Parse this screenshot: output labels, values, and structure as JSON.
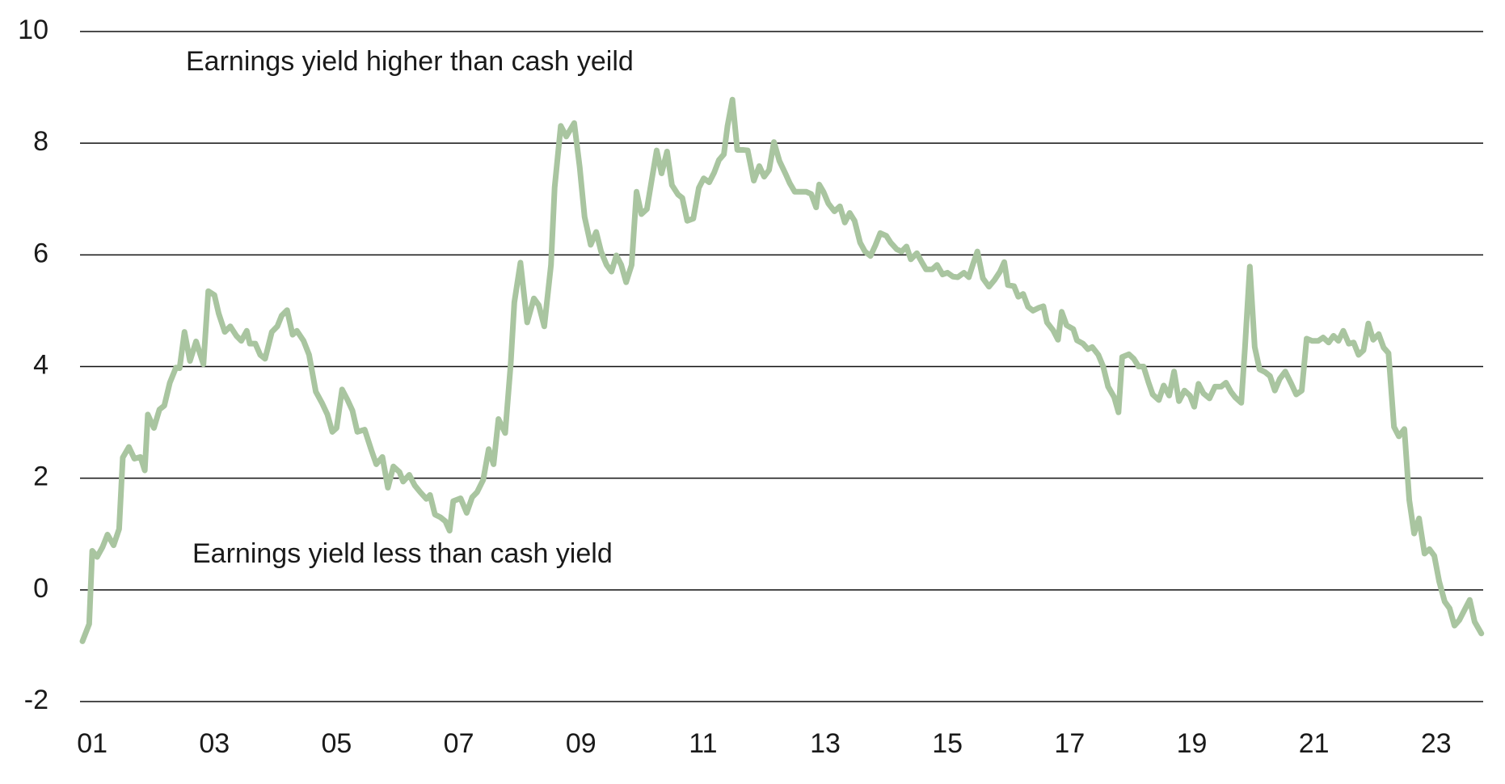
{
  "chart_data": {
    "type": "line",
    "annotations": [
      "Earnings yield higher than cash yeild",
      "Earnings yield less than cash yield"
    ],
    "color": "#a9c5a0",
    "grid": true,
    "xlim": [
      2000.8,
      2023.77
    ],
    "ylim": [
      -2,
      10
    ],
    "yticks": [
      -2,
      0,
      2,
      4,
      6,
      8,
      10
    ],
    "xticks": [
      {
        "value": 2001,
        "label": "01"
      },
      {
        "value": 2003,
        "label": "03"
      },
      {
        "value": 2005,
        "label": "05"
      },
      {
        "value": 2007,
        "label": "07"
      },
      {
        "value": 2009,
        "label": "09"
      },
      {
        "value": 2011,
        "label": "11"
      },
      {
        "value": 2013,
        "label": "13"
      },
      {
        "value": 2015,
        "label": "15"
      },
      {
        "value": 2017,
        "label": "17"
      },
      {
        "value": 2019,
        "label": "19"
      },
      {
        "value": 2021,
        "label": "21"
      },
      {
        "value": 2023,
        "label": "23"
      }
    ],
    "x": [
      2000.84,
      2000.95,
      2001.0,
      2001.08,
      2001.17,
      2001.25,
      2001.35,
      2001.44,
      2001.5,
      2001.6,
      2001.69,
      2001.79,
      2001.86,
      2001.91,
      2002.01,
      2002.1,
      2002.18,
      2002.27,
      2002.37,
      2002.43,
      2002.51,
      2002.6,
      2002.7,
      2002.82,
      2002.9,
      2003.0,
      2003.07,
      2003.17,
      2003.26,
      2003.36,
      2003.44,
      2003.53,
      2003.58,
      2003.67,
      2003.75,
      2003.83,
      2003.94,
      2004.03,
      2004.1,
      2004.19,
      2004.28,
      2004.35,
      2004.46,
      2004.55,
      2004.66,
      2004.76,
      2004.85,
      2004.93,
      2005.0,
      2005.09,
      2005.18,
      2005.26,
      2005.34,
      2005.46,
      2005.57,
      2005.65,
      2005.75,
      2005.84,
      2005.93,
      2006.03,
      2006.09,
      2006.19,
      2006.28,
      2006.37,
      2006.47,
      2006.53,
      2006.61,
      2006.7,
      2006.78,
      2006.85,
      2006.91,
      2007.03,
      2007.13,
      2007.22,
      2007.3,
      2007.4,
      2007.49,
      2007.57,
      2007.65,
      2007.76,
      2007.85,
      2007.91,
      2008.01,
      2008.12,
      2008.23,
      2008.31,
      2008.4,
      2008.51,
      2008.57,
      2008.67,
      2008.76,
      2008.89,
      2008.98,
      2009.06,
      2009.16,
      2009.25,
      2009.33,
      2009.42,
      2009.5,
      2009.58,
      2009.66,
      2009.74,
      2009.83,
      2009.91,
      2009.99,
      2010.08,
      2010.16,
      2010.24,
      2010.32,
      2010.41,
      2010.49,
      2010.59,
      2010.66,
      2010.74,
      2010.84,
      2010.93,
      2011.01,
      2011.1,
      2011.18,
      2011.26,
      2011.34,
      2011.4,
      2011.48,
      2011.56,
      2011.65,
      2011.73,
      2011.83,
      2011.92,
      2012.0,
      2012.08,
      2012.16,
      2012.25,
      2012.35,
      2012.42,
      2012.5,
      2012.6,
      2012.69,
      2012.77,
      2012.85,
      2012.9,
      2012.97,
      2013.05,
      2013.15,
      2013.24,
      2013.32,
      2013.4,
      2013.48,
      2013.57,
      2013.65,
      2013.74,
      2013.82,
      2013.9,
      2014.0,
      2014.07,
      2014.17,
      2014.25,
      2014.33,
      2014.4,
      2014.5,
      2014.58,
      2014.65,
      2014.75,
      2014.83,
      2014.92,
      2015.0,
      2015.09,
      2015.17,
      2015.27,
      2015.35,
      2015.42,
      2015.49,
      2015.58,
      2015.68,
      2015.77,
      2015.86,
      2015.93,
      2015.99,
      2016.09,
      2016.16,
      2016.24,
      2016.32,
      2016.4,
      2016.49,
      2016.57,
      2016.63,
      2016.73,
      2016.81,
      2016.87,
      2016.95,
      2017.06,
      2017.12,
      2017.22,
      2017.3,
      2017.37,
      2017.47,
      2017.55,
      2017.63,
      2017.73,
      2017.8,
      2017.86,
      2017.97,
      2018.05,
      2018.13,
      2018.21,
      2018.29,
      2018.36,
      2018.46,
      2018.54,
      2018.63,
      2018.71,
      2018.79,
      2018.88,
      2018.97,
      2019.04,
      2019.11,
      2019.19,
      2019.29,
      2019.38,
      2019.48,
      2019.56,
      2019.64,
      2019.71,
      2019.81,
      2019.87,
      2019.95,
      2020.03,
      2020.11,
      2020.2,
      2020.28,
      2020.36,
      2020.44,
      2020.53,
      2020.63,
      2020.71,
      2020.8,
      2020.88,
      2020.97,
      2021.07,
      2021.15,
      2021.24,
      2021.32,
      2021.4,
      2021.48,
      2021.57,
      2021.65,
      2021.73,
      2021.81,
      2021.89,
      2021.97,
      2022.06,
      2022.14,
      2022.22,
      2022.31,
      2022.39,
      2022.48,
      2022.56,
      2022.64,
      2022.72,
      2022.81,
      2022.89,
      2022.97,
      2023.05,
      2023.14,
      2023.22,
      2023.3,
      2023.38,
      2023.46,
      2023.55,
      2023.63,
      2023.74
    ],
    "values": [
      -0.92,
      -0.61,
      0.7,
      0.59,
      0.77,
      0.99,
      0.8,
      1.09,
      2.37,
      2.56,
      2.35,
      2.38,
      2.14,
      3.14,
      2.9,
      3.23,
      3.3,
      3.71,
      3.98,
      3.97,
      4.62,
      4.1,
      4.45,
      4.04,
      5.35,
      5.28,
      4.95,
      4.62,
      4.72,
      4.55,
      4.46,
      4.64,
      4.41,
      4.41,
      4.21,
      4.14,
      4.62,
      4.72,
      4.91,
      5.01,
      4.57,
      4.64,
      4.46,
      4.21,
      3.55,
      3.35,
      3.14,
      2.83,
      2.9,
      3.59,
      3.4,
      3.21,
      2.83,
      2.87,
      2.5,
      2.25,
      2.38,
      1.83,
      2.21,
      2.11,
      1.94,
      2.06,
      1.87,
      1.75,
      1.63,
      1.7,
      1.35,
      1.3,
      1.23,
      1.06,
      1.59,
      1.64,
      1.38,
      1.66,
      1.75,
      1.97,
      2.52,
      2.25,
      3.06,
      2.81,
      4.04,
      5.15,
      5.86,
      4.79,
      5.22,
      5.1,
      4.72,
      5.82,
      7.21,
      8.31,
      8.12,
      8.36,
      7.57,
      6.68,
      6.18,
      6.41,
      6.06,
      5.82,
      5.7,
      5.99,
      5.82,
      5.51,
      5.82,
      7.13,
      6.73,
      6.82,
      7.35,
      7.87,
      7.46,
      7.85,
      7.25,
      7.08,
      7.02,
      6.61,
      6.65,
      7.2,
      7.37,
      7.3,
      7.47,
      7.7,
      7.8,
      8.31,
      8.78,
      7.88,
      7.88,
      7.87,
      7.33,
      7.59,
      7.4,
      7.52,
      8.02,
      7.68,
      7.45,
      7.28,
      7.13,
      7.13,
      7.13,
      7.09,
      6.85,
      7.26,
      7.13,
      6.92,
      6.78,
      6.87,
      6.58,
      6.75,
      6.61,
      6.22,
      6.06,
      5.98,
      6.17,
      6.39,
      6.34,
      6.22,
      6.1,
      6.06,
      6.15,
      5.92,
      6.03,
      5.87,
      5.74,
      5.74,
      5.82,
      5.65,
      5.68,
      5.61,
      5.6,
      5.68,
      5.6,
      5.84,
      6.06,
      5.58,
      5.43,
      5.55,
      5.7,
      5.87,
      5.46,
      5.44,
      5.25,
      5.3,
      5.07,
      5.0,
      5.05,
      5.08,
      4.79,
      4.65,
      4.48,
      4.98,
      4.74,
      4.67,
      4.47,
      4.41,
      4.31,
      4.35,
      4.21,
      4.0,
      3.64,
      3.45,
      3.18,
      4.17,
      4.22,
      4.14,
      4.0,
      4.0,
      3.72,
      3.5,
      3.4,
      3.66,
      3.48,
      3.91,
      3.38,
      3.57,
      3.48,
      3.28,
      3.69,
      3.52,
      3.43,
      3.64,
      3.64,
      3.71,
      3.55,
      3.45,
      3.35,
      4.33,
      5.79,
      4.35,
      3.95,
      3.9,
      3.83,
      3.57,
      3.78,
      3.91,
      3.69,
      3.5,
      3.57,
      4.5,
      4.46,
      4.46,
      4.52,
      4.43,
      4.55,
      4.46,
      4.64,
      4.41,
      4.43,
      4.21,
      4.29,
      4.77,
      4.48,
      4.58,
      4.34,
      4.24,
      2.92,
      2.75,
      2.88,
      1.61,
      1.01,
      1.28,
      0.65,
      0.73,
      0.61,
      0.15,
      -0.21,
      -0.33,
      -0.64,
      -0.54,
      -0.37,
      -0.18,
      -0.57,
      -0.78
    ]
  }
}
